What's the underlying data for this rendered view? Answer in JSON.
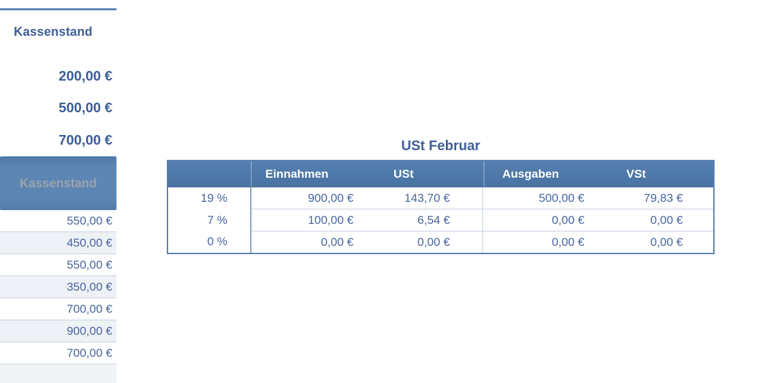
{
  "colors": {
    "accent_blue": "#4D79A9",
    "panel_header_blue": "#5B84B4",
    "dark_blue_text": "#3E5E98",
    "value_blue_text": "#46659D",
    "muted_header_text": "#9BA2AC",
    "row_stripe": "#EEF1F5",
    "row_separator": "#C7D2E0",
    "table_border": "#5D81B0",
    "header_text": "#FFFFFF"
  },
  "left_panel": {
    "summary": {
      "title": "Kassenstand",
      "values": [
        "200,00 €",
        "500,00 €",
        "700,00 €"
      ]
    },
    "table": {
      "header": "Kassenstand",
      "rows": [
        "550,00 €",
        "450,00 €",
        "550,00 €",
        "350,00 €",
        "700,00 €",
        "900,00 €",
        "700,00 €"
      ]
    }
  },
  "ust_table": {
    "title": "USt Februar",
    "columns": [
      "",
      "Einnahmen",
      "USt",
      "Ausgaben",
      "VSt"
    ],
    "rows": [
      [
        "19 %",
        "900,00 €",
        "143,70 €",
        "500,00 €",
        "79,83 €"
      ],
      [
        "7 %",
        "100,00 €",
        "6,54 €",
        "0,00 €",
        "0,00 €"
      ],
      [
        "0 %",
        "0,00 €",
        "0,00 €",
        "0,00 €",
        "0,00 €"
      ]
    ]
  }
}
